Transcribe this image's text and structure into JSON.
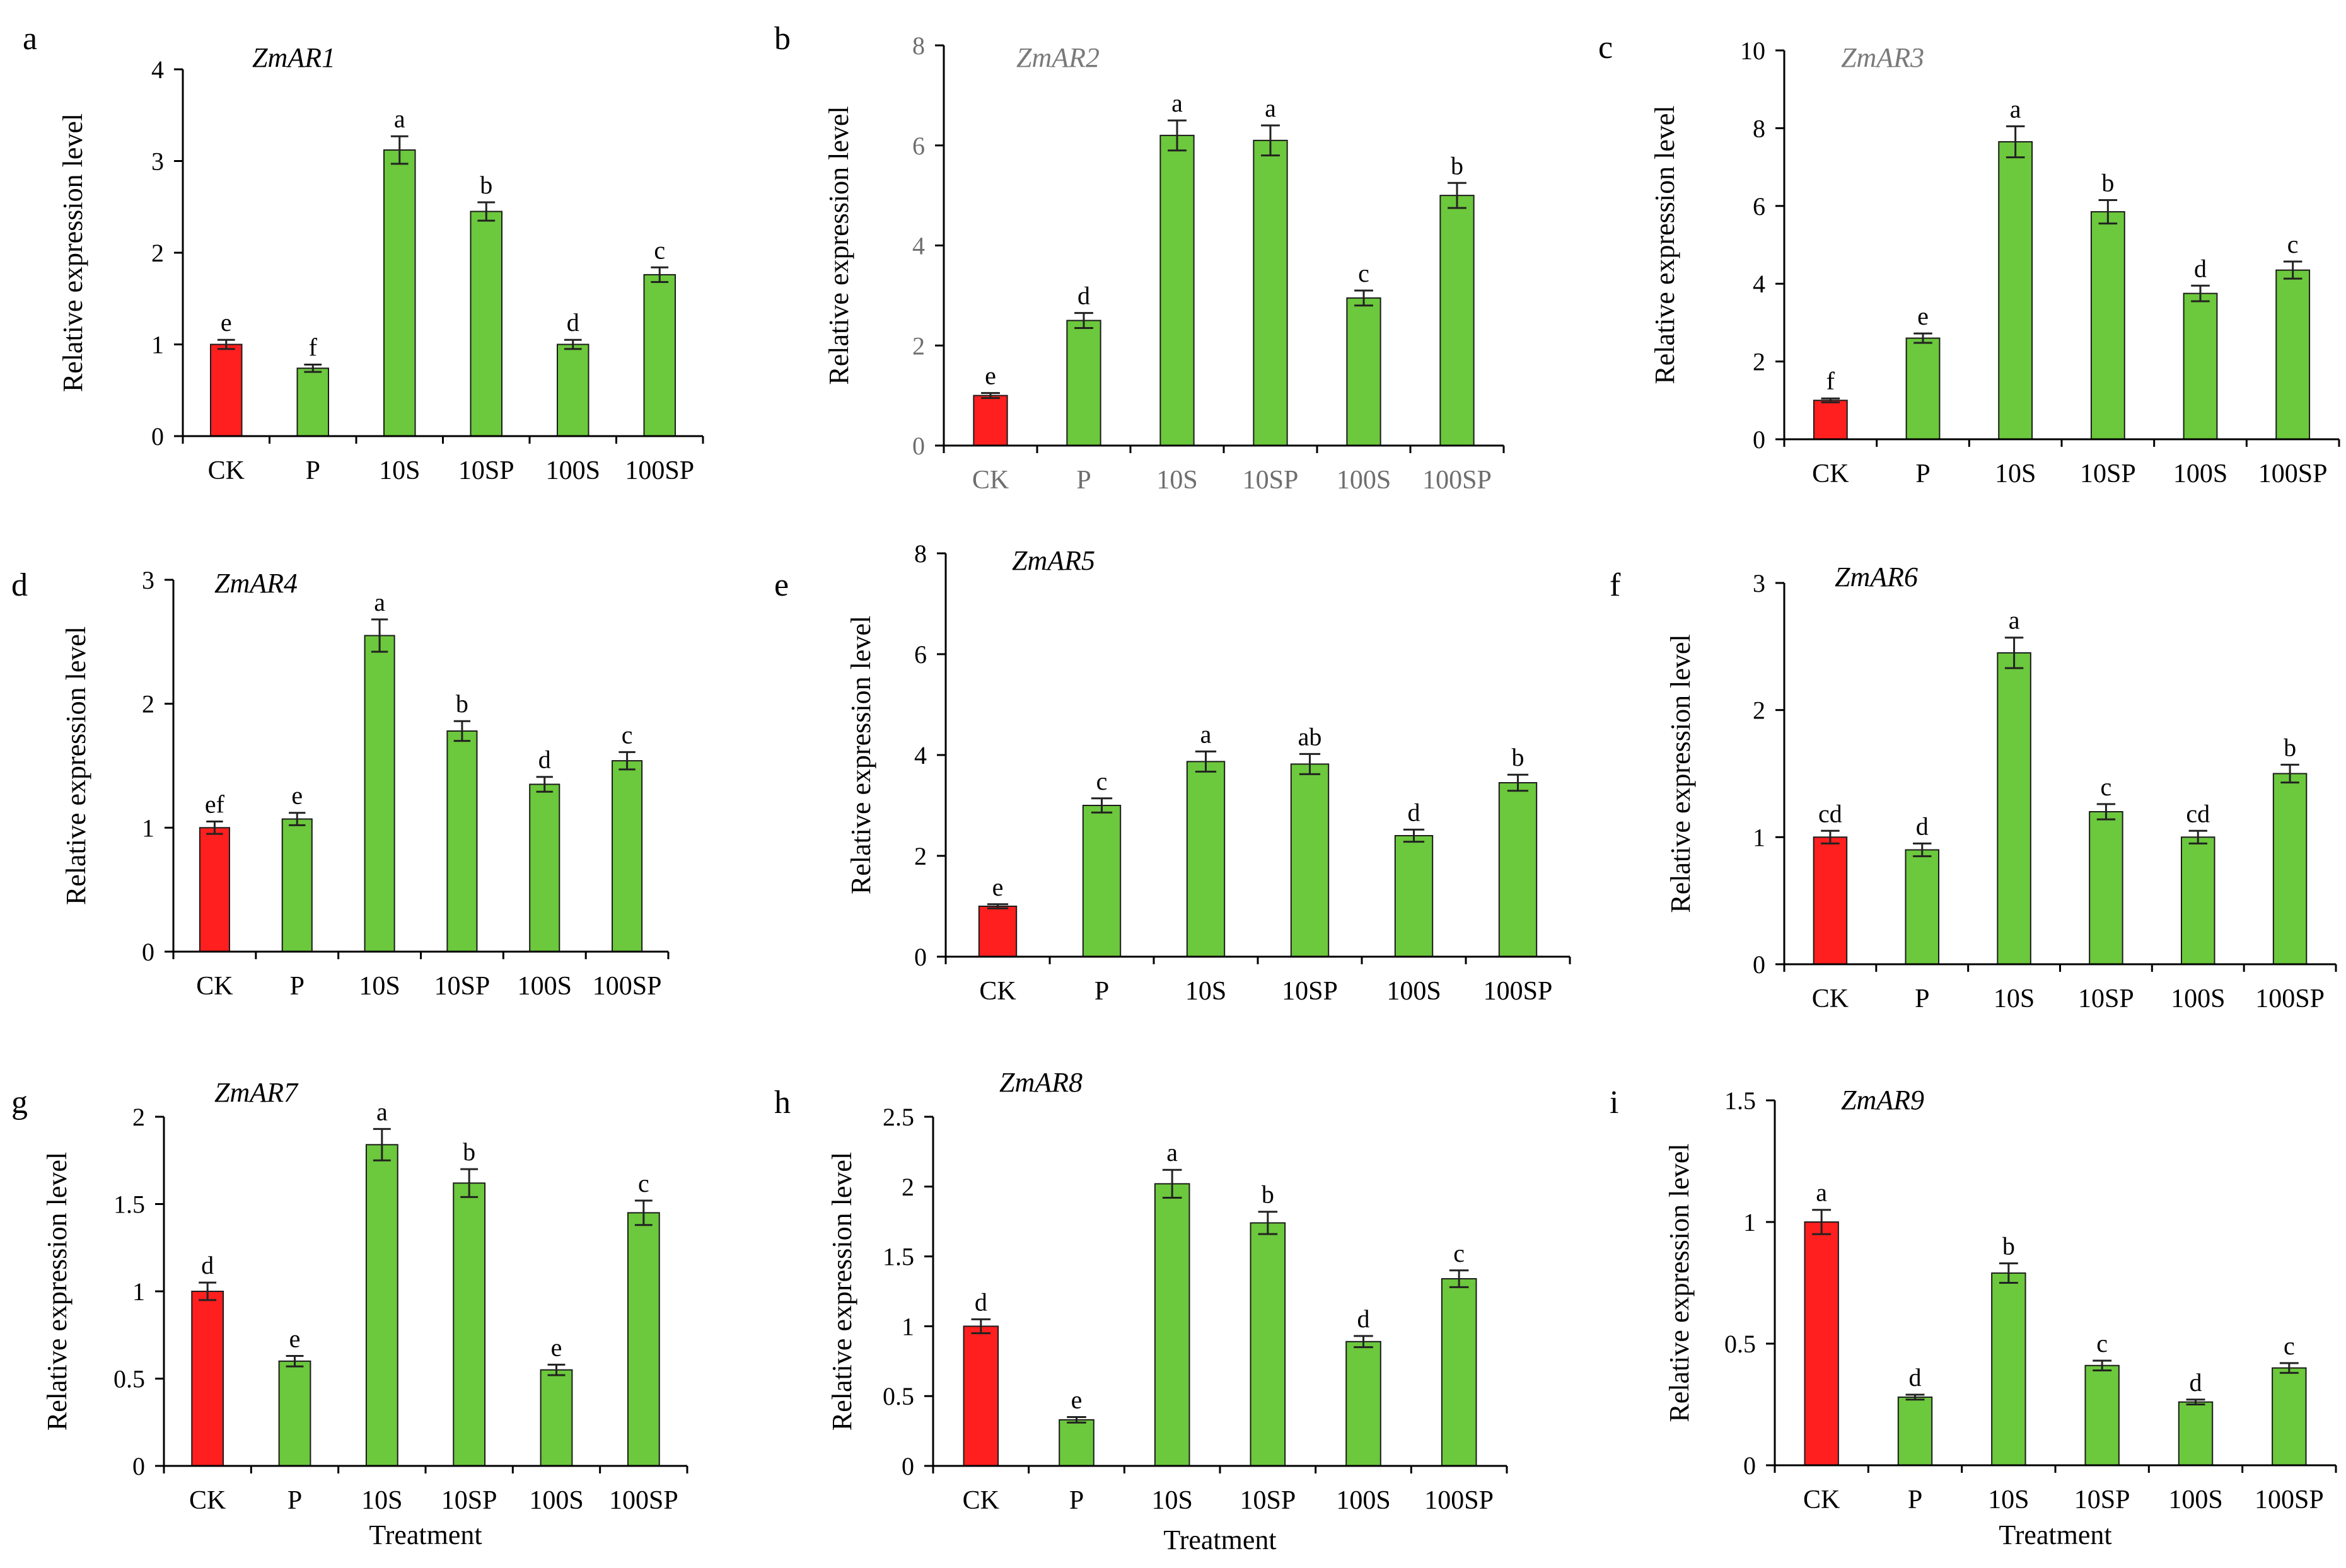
{
  "figure": {
    "style": {
      "control_color": "#ff1f1f",
      "treatment_color": "#6cc83c",
      "muted_title_color": "#7a7a7a",
      "muted_axis_text_color": "#6e6e6e"
    }
  },
  "chart_data": [
    {
      "panel": "a",
      "title": "ZmAR1",
      "type": "bar",
      "ylabel": "Relative expression level",
      "xlabel": "",
      "ylim": [
        0,
        4
      ],
      "yticks": [
        "0",
        "1",
        "2",
        "3",
        "4"
      ],
      "categories": [
        "CK",
        "P",
        "10S",
        "10SP",
        "100S",
        "100SP"
      ],
      "values": [
        1.0,
        0.74,
        3.12,
        2.45,
        1.0,
        1.76
      ],
      "errors": [
        0.05,
        0.04,
        0.15,
        0.1,
        0.05,
        0.08
      ],
      "significance": [
        "e",
        "f",
        "a",
        "b",
        "d",
        "c"
      ]
    },
    {
      "panel": "b",
      "title": "ZmAR2",
      "type": "bar",
      "ylabel": "Relative expression level",
      "xlabel": "",
      "ylim": [
        0,
        8
      ],
      "yticks": [
        "0",
        "2",
        "4",
        "6",
        "8"
      ],
      "categories": [
        "CK",
        "P",
        "10S",
        "10SP",
        "100S",
        "100SP"
      ],
      "values": [
        1.0,
        2.5,
        6.2,
        6.1,
        2.95,
        5.0
      ],
      "errors": [
        0.05,
        0.15,
        0.3,
        0.3,
        0.15,
        0.25
      ],
      "significance": [
        "e",
        "d",
        "a",
        "a",
        "c",
        "b"
      ],
      "muted_title": true,
      "muted_categories": true
    },
    {
      "panel": "c",
      "title": "ZmAR3",
      "type": "bar",
      "ylabel": "Relative expression level",
      "xlabel": "",
      "ylim": [
        0,
        10
      ],
      "yticks": [
        "0",
        "2",
        "4",
        "6",
        "8",
        "10"
      ],
      "categories": [
        "CK",
        "P",
        "10S",
        "10SP",
        "100S",
        "100SP"
      ],
      "values": [
        1.0,
        2.6,
        7.65,
        5.85,
        3.75,
        4.35
      ],
      "errors": [
        0.05,
        0.12,
        0.4,
        0.3,
        0.2,
        0.22
      ],
      "significance": [
        "f",
        "e",
        "a",
        "b",
        "d",
        "c"
      ],
      "muted_title": true
    },
    {
      "panel": "d",
      "title": "ZmAR4",
      "type": "bar",
      "ylabel": "Relative expression level",
      "xlabel": "",
      "ylim": [
        0,
        3
      ],
      "yticks": [
        "0",
        "1",
        "2",
        "3"
      ],
      "categories": [
        "CK",
        "P",
        "10S",
        "10SP",
        "100S",
        "100SP"
      ],
      "values": [
        1.0,
        1.07,
        2.55,
        1.78,
        1.35,
        1.54
      ],
      "errors": [
        0.05,
        0.05,
        0.13,
        0.08,
        0.06,
        0.07
      ],
      "significance": [
        "ef",
        "e",
        "a",
        "b",
        "d",
        "c"
      ]
    },
    {
      "panel": "e",
      "title": "ZmAR5",
      "type": "bar",
      "ylabel": "Relative expression level",
      "xlabel": "",
      "ylim": [
        0,
        8
      ],
      "yticks": [
        "0",
        "2",
        "4",
        "6",
        "8"
      ],
      "categories": [
        "CK",
        "P",
        "10S",
        "10SP",
        "100S",
        "100SP"
      ],
      "values": [
        1.0,
        3.0,
        3.87,
        3.82,
        2.4,
        3.45
      ],
      "errors": [
        0.04,
        0.14,
        0.2,
        0.2,
        0.12,
        0.16
      ],
      "significance": [
        "e",
        "c",
        "a",
        "ab",
        "d",
        "b"
      ]
    },
    {
      "panel": "f",
      "title": "ZmAR6",
      "type": "bar",
      "ylabel": "Relative expression level",
      "xlabel": "",
      "ylim": [
        0,
        3
      ],
      "yticks": [
        "0",
        "1",
        "2",
        "3"
      ],
      "categories": [
        "CK",
        "P",
        "10S",
        "10SP",
        "100S",
        "100SP"
      ],
      "values": [
        1.0,
        0.9,
        2.45,
        1.2,
        1.0,
        1.5
      ],
      "errors": [
        0.05,
        0.05,
        0.12,
        0.06,
        0.05,
        0.07
      ],
      "significance": [
        "cd",
        "d",
        "a",
        "c",
        "cd",
        "b"
      ]
    },
    {
      "panel": "g",
      "title": "ZmAR7",
      "type": "bar",
      "ylabel": "Relative expression level",
      "xlabel": "Treatment",
      "ylim": [
        0,
        2
      ],
      "yticks": [
        "0",
        "0.5",
        "1",
        "1.5",
        "2"
      ],
      "categories": [
        "CK",
        "P",
        "10S",
        "10SP",
        "100S",
        "100SP"
      ],
      "values": [
        1.0,
        0.6,
        1.84,
        1.62,
        0.55,
        1.45
      ],
      "errors": [
        0.05,
        0.03,
        0.09,
        0.08,
        0.03,
        0.07
      ],
      "significance": [
        "d",
        "e",
        "a",
        "b",
        "e",
        "c"
      ]
    },
    {
      "panel": "h",
      "title": "ZmAR8",
      "type": "bar",
      "ylabel": "Relative expression level",
      "xlabel": "Treatment",
      "ylim": [
        0,
        2.5
      ],
      "yticks": [
        "0",
        "0.5",
        "1",
        "1.5",
        "2",
        "2.5"
      ],
      "categories": [
        "CK",
        "P",
        "10S",
        "10SP",
        "100S",
        "100SP"
      ],
      "values": [
        1.0,
        0.33,
        2.02,
        1.74,
        0.89,
        1.34
      ],
      "errors": [
        0.05,
        0.02,
        0.1,
        0.08,
        0.04,
        0.06
      ],
      "significance": [
        "d",
        "e",
        "a",
        "b",
        "d",
        "c"
      ]
    },
    {
      "panel": "i",
      "title": "ZmAR9",
      "type": "bar",
      "ylabel": "Relative expression level",
      "xlabel": "Treatment",
      "ylim": [
        0,
        1.5
      ],
      "yticks": [
        "0",
        "0.5",
        "1",
        "1.5"
      ],
      "categories": [
        "CK",
        "P",
        "10S",
        "10SP",
        "100S",
        "100SP"
      ],
      "values": [
        1.0,
        0.28,
        0.79,
        0.41,
        0.26,
        0.4
      ],
      "errors": [
        0.05,
        0.01,
        0.04,
        0.02,
        0.01,
        0.02
      ],
      "significance": [
        "a",
        "d",
        "b",
        "c",
        "d",
        "c"
      ]
    }
  ]
}
